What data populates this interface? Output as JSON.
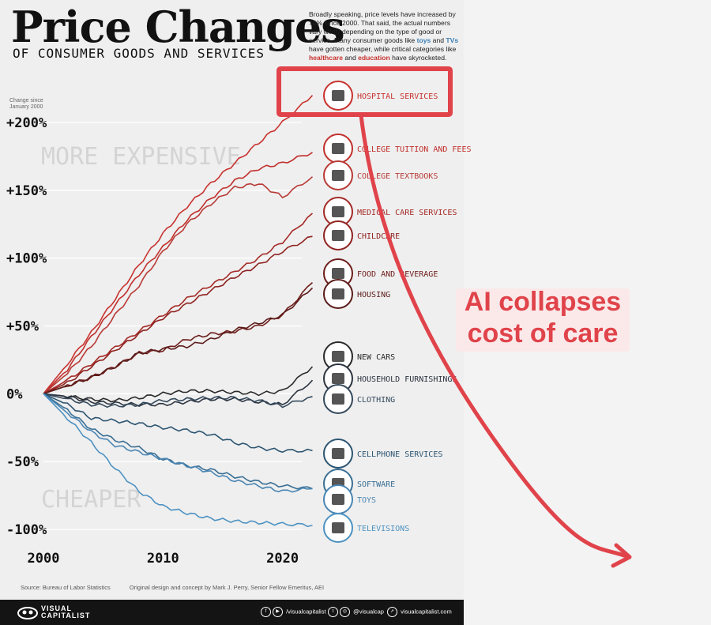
{
  "header": {
    "title": "Price Changes",
    "subtitle": "OF CONSUMER GOODS AND SERVICES",
    "intro": [
      {
        "t": "Broadly speaking, price levels have increased by 74% since 2000. That said, the actual numbers vary wildly depending on the type of good or service. Many consumer goods like ",
        "c": ""
      },
      {
        "t": "toys",
        "c": "blue"
      },
      {
        "t": " and ",
        "c": ""
      },
      {
        "t": "TVs",
        "c": "blue"
      },
      {
        "t": " have gotten cheaper, while critical categories like ",
        "c": ""
      },
      {
        "t": "healthcare",
        "c": "red"
      },
      {
        "t": " and ",
        "c": ""
      },
      {
        "t": "education",
        "c": "red"
      },
      {
        "t": " have skyrocketed.",
        "c": ""
      }
    ]
  },
  "chart_data": {
    "type": "line",
    "ylabel": "Change since January 2000",
    "region_labels": {
      "top": "MORE EXPENSIVE",
      "bottom": "CHEAPER"
    },
    "xlim": [
      2000,
      2022.8
    ],
    "ylim": [
      -100,
      200
    ],
    "x_ticks": [
      2000,
      2010,
      2020
    ],
    "y_ticks": [
      {
        "value": 200,
        "label": "+200%"
      },
      {
        "value": 150,
        "label": "+150%"
      },
      {
        "value": 100,
        "label": "+100%"
      },
      {
        "value": 50,
        "label": "+50%"
      },
      {
        "value": 0,
        "label": "0%"
      },
      {
        "value": -50,
        "label": "-50%"
      },
      {
        "value": -100,
        "label": "-100%"
      }
    ],
    "x": [
      2000,
      2002,
      2004,
      2006,
      2008,
      2010,
      2012,
      2014,
      2016,
      2018,
      2020,
      2022.5
    ],
    "series": [
      {
        "name": "HOSPITAL SERVICES",
        "color": "#c8332f",
        "icon": "hospital-icon",
        "values": [
          0,
          22,
          45,
          70,
          95,
          118,
          138,
          155,
          170,
          185,
          200,
          220
        ]
      },
      {
        "name": "COLLEGE TUITION AND FEES",
        "color": "#c0302c",
        "icon": "graduation-cap-icon",
        "values": [
          0,
          18,
          42,
          65,
          88,
          108,
          128,
          144,
          157,
          166,
          170,
          178
        ]
      },
      {
        "name": "COLLEGE TEXTBOOKS",
        "color": "#b83a36",
        "icon": "book-icon",
        "values": [
          0,
          15,
          35,
          58,
          80,
          105,
          125,
          140,
          152,
          155,
          145,
          160
        ]
      },
      {
        "name": "MEDICAL CARE SERVICES",
        "color": "#a52a26",
        "icon": "medical-kit-icon",
        "values": [
          0,
          10,
          22,
          34,
          46,
          58,
          70,
          80,
          90,
          100,
          112,
          133
        ]
      },
      {
        "name": "CHILDCARE",
        "color": "#8f2320",
        "icon": "stroller-icon",
        "values": [
          0,
          8,
          20,
          32,
          44,
          56,
          66,
          76,
          86,
          95,
          105,
          116
        ]
      },
      {
        "name": "FOOD AND BEVERAGE",
        "color": "#6e1d1b",
        "icon": "food-icon",
        "values": [
          0,
          6,
          12,
          20,
          30,
          32,
          40,
          44,
          46,
          50,
          58,
          82
        ]
      },
      {
        "name": "HOUSING",
        "color": "#5b1c1a",
        "icon": "house-icon",
        "values": [
          0,
          6,
          12,
          20,
          30,
          33,
          35,
          40,
          47,
          52,
          58,
          78
        ]
      },
      {
        "name": "NEW CARS",
        "color": "#2a2a2a",
        "icon": "car-icon",
        "values": [
          0,
          -2,
          -4,
          -5,
          -3,
          0,
          2,
          2,
          1,
          0,
          2,
          20
        ]
      },
      {
        "name": "HOUSEHOLD FURNISHINGS",
        "color": "#2c3440",
        "icon": "sofa-icon",
        "values": [
          0,
          -2,
          -6,
          -7,
          -8,
          -8,
          -6,
          -4,
          -4,
          -6,
          -8,
          10
        ]
      },
      {
        "name": "CLOTHING",
        "color": "#34495c",
        "icon": "shirt-icon",
        "values": [
          0,
          -4,
          -8,
          -9,
          -8,
          -5,
          -4,
          -3,
          -3,
          -5,
          -9,
          -2
        ]
      },
      {
        "name": "CELLPHONE SERVICES",
        "color": "#2c5571",
        "icon": "cellphone-icon",
        "values": [
          0,
          -8,
          -18,
          -20,
          -22,
          -25,
          -27,
          -30,
          -36,
          -40,
          -42,
          -42
        ]
      },
      {
        "name": "SOFTWARE",
        "color": "#3a6f95",
        "icon": "software-icon",
        "values": [
          0,
          -12,
          -26,
          -34,
          -40,
          -48,
          -53,
          -56,
          -61,
          -65,
          -68,
          -70
        ]
      },
      {
        "name": "TOYS",
        "color": "#4a86b4",
        "icon": "toy-icon",
        "values": [
          0,
          -14,
          -28,
          -38,
          -43,
          -48,
          -53,
          -58,
          -64,
          -68,
          -72,
          -70
        ]
      },
      {
        "name": "TELEVISIONS",
        "color": "#4d92c2",
        "icon": "tv-icon",
        "values": [
          0,
          -18,
          -36,
          -55,
          -72,
          -83,
          -88,
          -92,
          -94,
          -95,
          -96,
          -97
        ]
      }
    ]
  },
  "annotation": {
    "text_line1": "AI collapses",
    "text_line2": "cost of care",
    "color": "#e0434a"
  },
  "footnotes": {
    "source": "Source: Bureau of Labor Statistics",
    "credit": "Original design and concept by Mark J. Perry, Senior Fellow Emeritus, AEI"
  },
  "footer": {
    "brand_line1": "VISUAL",
    "brand_line2": "CAPITALIST",
    "social": [
      {
        "icons": [
          "f",
          "▶"
        ],
        "handle": "/visualcapitalist"
      },
      {
        "icons": [
          "t",
          "◎"
        ],
        "handle": "@visualcap"
      },
      {
        "icons": [
          "➚"
        ],
        "handle": "visualcapitalist.com"
      }
    ]
  }
}
